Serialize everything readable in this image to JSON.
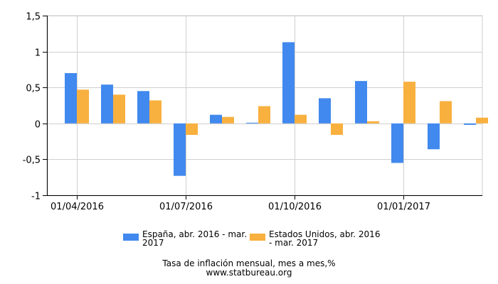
{
  "chart_data": {
    "type": "bar",
    "categories": [
      "2016-04",
      "2016-05",
      "2016-06",
      "2016-07",
      "2016-08",
      "2016-09",
      "2016-10",
      "2016-11",
      "2016-12",
      "2017-01",
      "2017-02",
      "2017-03"
    ],
    "x_tick_labels": [
      {
        "label": "01/04/2016",
        "category": "2016-04"
      },
      {
        "label": "01/07/2016",
        "category": "2016-07"
      },
      {
        "label": "01/10/2016",
        "category": "2016-10"
      },
      {
        "label": "01/01/2017",
        "category": "2017-01"
      }
    ],
    "series": [
      {
        "name": "España, abr. 2016 - mar. 2017",
        "color": "#4189ee",
        "values": [
          0.7,
          0.54,
          0.45,
          -0.73,
          0.12,
          0.01,
          1.13,
          0.35,
          0.59,
          -0.55,
          -0.36,
          -0.02
        ]
      },
      {
        "name": "Estados Unidos, abr. 2016 - mar. 2017",
        "color": "#f8b03f",
        "values": [
          0.47,
          0.4,
          0.32,
          -0.16,
          0.09,
          0.24,
          0.12,
          -0.16,
          0.03,
          0.58,
          0.31,
          0.08
        ]
      }
    ],
    "ylim": [
      -1,
      1.5
    ],
    "y_ticks": [
      -1,
      -0.5,
      0,
      0.5,
      1,
      1.5
    ],
    "y_tick_labels": [
      "-1",
      "-0,5",
      "0",
      "0,5",
      "1",
      "1,5"
    ],
    "grid": true,
    "legend_position": "bottom",
    "legend": [
      {
        "line1": "España, abr. 2016 - mar.",
        "line2": "2017"
      },
      {
        "line1": "Estados Unidos, abr. 2016",
        "line2": "- mar. 2017"
      }
    ],
    "title": "Tasa de inflación mensual, mes a mes,%",
    "subtitle": "www.statbureau.org"
  }
}
